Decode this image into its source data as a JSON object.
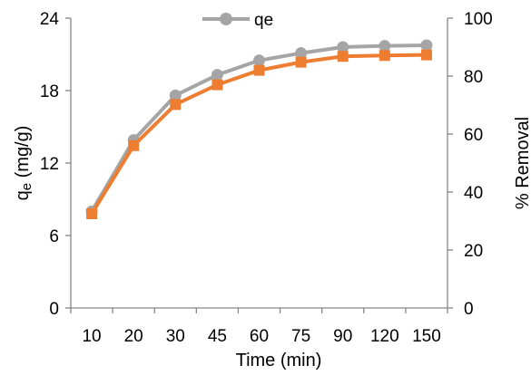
{
  "chart_data": {
    "type": "line",
    "categories": [
      "10",
      "20",
      "30",
      "45",
      "60",
      "75",
      "90",
      "120",
      "150"
    ],
    "xlabel": "Time (min)",
    "ylabel": "qe (mg/g)",
    "ylabel_main": "q",
    "ylabel_sub": "e",
    "ylabel_units": " (mg/g)",
    "y2label": "% Removal",
    "ylim": [
      0,
      24
    ],
    "y2lim": [
      0,
      100
    ],
    "yticks": [
      "0",
      "6",
      "12",
      "18",
      "24"
    ],
    "y2ticks": [
      "0",
      "20",
      "40",
      "60",
      "80",
      "100"
    ],
    "series": [
      {
        "name": "qe",
        "axis": "left",
        "marker": "circle",
        "color": "#A5A5A5",
        "values": [
          8.0,
          13.9,
          17.6,
          19.3,
          20.5,
          21.1,
          21.6,
          21.7,
          21.75
        ]
      },
      {
        "axis": "right",
        "marker": "square",
        "color": "#ED7D31",
        "values": [
          32.5,
          56.0,
          70.2,
          77.0,
          82.0,
          84.8,
          86.8,
          87.1,
          87.3
        ]
      }
    ],
    "legend": {
      "position": "top-center",
      "entries": [
        "qe"
      ]
    },
    "grid": false
  }
}
